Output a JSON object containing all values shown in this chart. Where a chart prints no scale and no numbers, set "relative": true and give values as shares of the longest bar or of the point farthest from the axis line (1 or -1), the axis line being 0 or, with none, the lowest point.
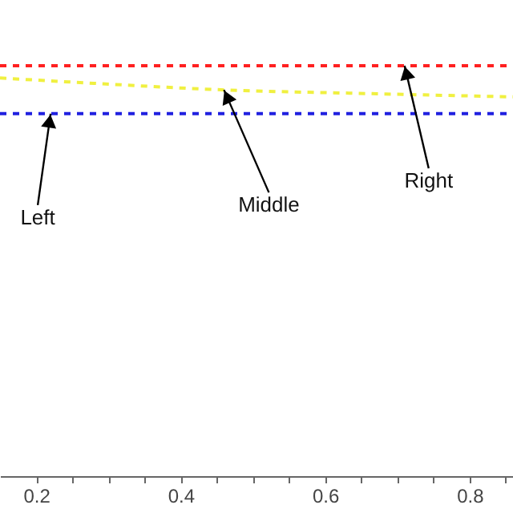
{
  "chart_data": {
    "type": "line",
    "relative": true,
    "line_style": "dashed",
    "marker": "none",
    "grid": false,
    "xlim": [
      0.15,
      0.86
    ],
    "xticks": [
      0.2,
      {
        "value": 0.25,
        "label": null
      },
      {
        "value": 0.3,
        "label": null
      },
      {
        "value": 0.35,
        "label": null
      },
      0.4,
      {
        "value": 0.45,
        "label": null
      },
      {
        "value": 0.5,
        "label": null
      },
      {
        "value": 0.55,
        "label": null
      },
      0.6,
      {
        "value": 0.65,
        "label": null
      },
      {
        "value": 0.7,
        "label": null
      },
      {
        "value": 0.75,
        "label": null
      },
      0.8,
      {
        "value": 0.85,
        "label": null
      }
    ],
    "series": [
      {
        "color": "#ff2020",
        "x": [
          0.15,
          0.86
        ],
        "values": [
          1,
          1
        ]
      },
      {
        "color": "#f0f040",
        "x": [
          0.15,
          0.28,
          0.46,
          0.66,
          0.86
        ],
        "values": [
          0.97,
          0.957,
          0.941,
          0.932,
          0.924
        ]
      },
      {
        "color": "#2020e0",
        "x": [
          0.15,
          0.86
        ],
        "values": [
          0.883,
          0.883
        ]
      }
    ],
    "annotations": [
      {
        "text": "Left",
        "x": 0.22,
        "y": 0.883
      },
      {
        "text": "Middle",
        "x": 0.46,
        "y": 0.941
      },
      {
        "text": "Right",
        "x": 0.71,
        "y": 1
      }
    ]
  }
}
